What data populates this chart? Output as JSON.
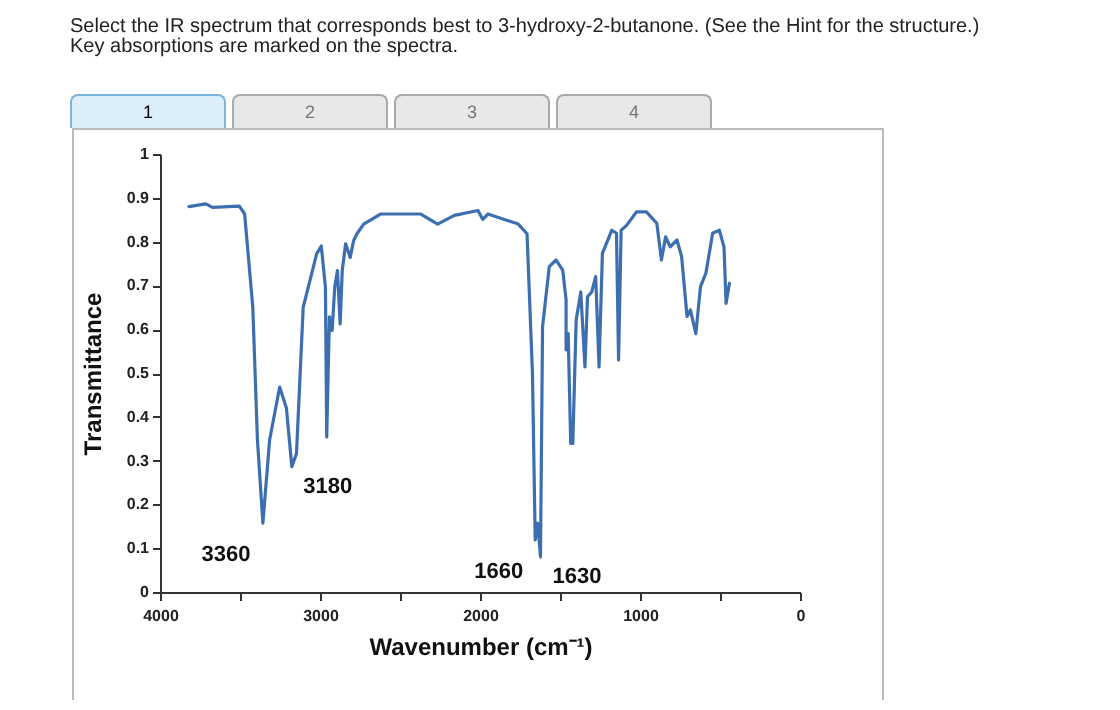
{
  "chart_data": {
    "type": "line",
    "title": "Select the IR spectrum that corresponds best to 3-hydroxy-2-butanone. (See the Hint for the structure.)",
    "subtitle": "Key absorptions are marked on the spectra.",
    "xlabel": "Wavenumber (cm⁻¹)",
    "ylabel": "Transmittance",
    "x": [
      3819,
      3714,
      3672,
      3504,
      3471,
      3420,
      3391,
      3357,
      3315,
      3252,
      3210,
      3176,
      3147,
      3105,
      3021,
      2992,
      2966,
      2958,
      2941,
      2924,
      2908,
      2891,
      2874,
      2861,
      2840,
      2811,
      2790,
      2769,
      2727,
      2622,
      2370,
      2265,
      2160,
      2013,
      1983,
      1950,
      1761,
      1706,
      1672,
      1655,
      1639,
      1622,
      1609,
      1567,
      1525,
      1483,
      1462,
      1462,
      1449,
      1433,
      1420,
      1399,
      1370,
      1344,
      1328,
      1302,
      1277,
      1256,
      1235,
      1176,
      1147,
      1134,
      1118,
      1084,
      1021,
      960,
      895,
      866,
      840,
      811,
      769,
      740,
      706,
      685,
      651,
      622,
      588,
      546,
      504,
      475,
      462,
      441
    ],
    "series": [
      {
        "color": "#3d6fb0",
        "values": [
          0.88,
          0.886,
          0.878,
          0.881,
          0.863,
          0.65,
          0.347,
          0.157,
          0.347,
          0.468,
          0.42,
          0.286,
          0.316,
          0.65,
          0.772,
          0.79,
          0.696,
          0.354,
          0.628,
          0.597,
          0.696,
          0.734,
          0.612,
          0.734,
          0.795,
          0.764,
          0.802,
          0.818,
          0.84,
          0.863,
          0.863,
          0.84,
          0.86,
          0.871,
          0.851,
          0.863,
          0.84,
          0.818,
          0.498,
          0.119,
          0.157,
          0.08,
          0.606,
          0.743,
          0.758,
          0.735,
          0.667,
          0.553,
          0.59,
          0.339,
          0.339,
          0.621,
          0.685,
          0.514,
          0.674,
          0.685,
          0.72,
          0.514,
          0.773,
          0.826,
          0.819,
          0.53,
          0.826,
          0.837,
          0.868,
          0.868,
          0.842,
          0.758,
          0.811,
          0.788,
          0.804,
          0.766,
          0.629,
          0.644,
          0.59,
          0.697,
          0.728,
          0.819,
          0.826,
          0.788,
          0.659,
          0.705
        ]
      }
    ],
    "xlim": [
      4000,
      0
    ],
    "xticks": [
      4000,
      {
        "value": 3500,
        "label": null
      },
      3000,
      {
        "value": 2500,
        "label": null
      },
      2000,
      {
        "value": 1500,
        "label": null
      },
      1000,
      {
        "value": 500,
        "label": null
      },
      0
    ],
    "ylim": [
      0,
      1
    ],
    "yticks": [
      {
        "value": 0,
        "label": "0"
      },
      {
        "value": 0.1,
        "label": "0.1"
      },
      {
        "value": 0.2,
        "label": "0.2"
      },
      {
        "value": 0.3,
        "label": "0.3"
      },
      {
        "value": 0.4,
        "label": "0.4"
      },
      {
        "value": 0.5,
        "label": "0.5"
      },
      {
        "value": 0.6,
        "label": "0.6"
      },
      {
        "value": 0.7,
        "label": "0.7"
      },
      {
        "value": 0.8,
        "label": "0.8"
      },
      {
        "value": 0.9,
        "label": "0.9"
      },
      {
        "value": 1,
        "label": "1"
      }
    ],
    "annotations": [
      "1",
      "2",
      "3",
      "4",
      {
        "text": "3360",
        "x": 3360,
        "y": 0.157
      },
      {
        "text": "3180",
        "x": 3180,
        "y": 0.286
      },
      {
        "text": "1660",
        "x": 1655,
        "y": 0.119
      },
      {
        "text": "1630",
        "x": 1622,
        "y": 0.08
      }
    ]
  }
}
